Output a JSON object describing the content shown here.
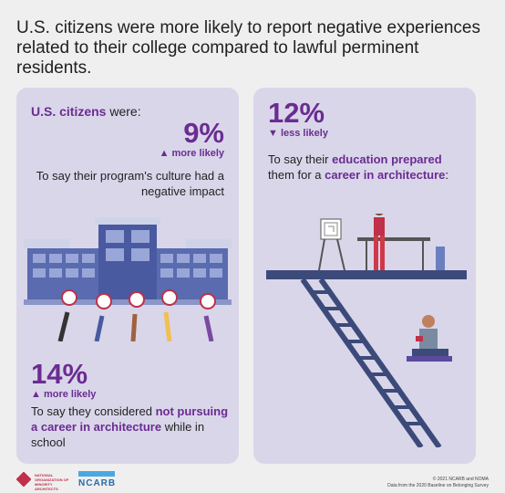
{
  "headline": "U.S. citizens were more likely to report negative experiences related to their college compared to lawful perminent residents.",
  "left_panel": {
    "lead_strong": "U.S. citizens",
    "lead_rest": " were:",
    "stat1": {
      "value": "9%",
      "direction": "▲ more likely",
      "text": "To say their program's culture had a negative impact"
    },
    "stat2": {
      "value": "14%",
      "direction": "▲ more likely",
      "text_pre": "To say they considered ",
      "text_strong": "not pursuing a career in architecture",
      "text_post": " while in school"
    }
  },
  "right_panel": {
    "stat": {
      "value": "12%",
      "direction": "▼ less likely",
      "text_pre": "To say their ",
      "text_strong1": "education prepared",
      "text_mid": " them for a ",
      "text_strong2": "career in architecture",
      "text_post": ":"
    }
  },
  "footer": {
    "logo1_text": "NATIONAL ORGANIZATION OF MINORITY ARCHITECTS",
    "logo2_text": "NCARB",
    "note1": "© 2021 NCARB and NOMA",
    "note2": "Data from the 2020 Baseline on Belonging Survey"
  },
  "colors": {
    "accent": "#6b2c91",
    "panel": "#d9d6ea",
    "background": "#efefef",
    "building": "#5a6bb0"
  }
}
